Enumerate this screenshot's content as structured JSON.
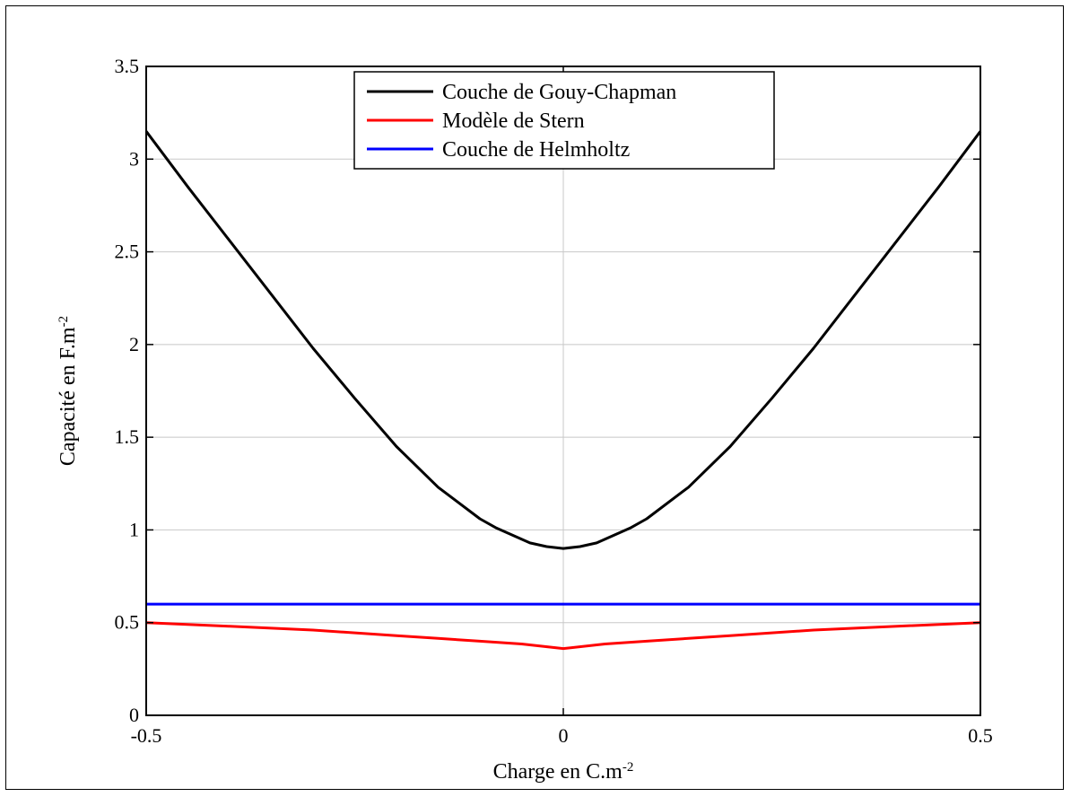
{
  "chart_data": {
    "type": "line",
    "title": "",
    "xlabel": "Charge en C.m",
    "xlabel_sup": "-2",
    "ylabel": "Capacité en F.m",
    "ylabel_sup": "-2",
    "xlim": [
      -0.5,
      0.5
    ],
    "ylim": [
      0,
      3.5
    ],
    "xticks": [
      -0.5,
      0,
      0.5
    ],
    "xtick_labels": [
      "-0.5",
      "0",
      "0.5"
    ],
    "yticks": [
      0,
      0.5,
      1,
      1.5,
      2,
      2.5,
      3,
      3.5
    ],
    "ytick_labels": [
      "0",
      "0.5",
      "1",
      "1.5",
      "2",
      "2.5",
      "3",
      "3.5"
    ],
    "grid": true,
    "legend_position": "top-center",
    "series": [
      {
        "name": "Couche de Gouy-Chapman",
        "color": "#000000",
        "x": [
          -0.5,
          -0.45,
          -0.4,
          -0.35,
          -0.3,
          -0.25,
          -0.2,
          -0.15,
          -0.1,
          -0.08,
          -0.06,
          -0.04,
          -0.02,
          0,
          0.02,
          0.04,
          0.06,
          0.08,
          0.1,
          0.15,
          0.2,
          0.25,
          0.3,
          0.35,
          0.4,
          0.45,
          0.5
        ],
        "y": [
          3.15,
          2.85,
          2.56,
          2.27,
          1.98,
          1.71,
          1.45,
          1.23,
          1.06,
          1.01,
          0.97,
          0.93,
          0.91,
          0.9,
          0.91,
          0.93,
          0.97,
          1.01,
          1.06,
          1.23,
          1.45,
          1.71,
          1.98,
          2.27,
          2.56,
          2.85,
          3.15
        ]
      },
      {
        "name": "Modèle de Stern",
        "color": "#ff0000",
        "x": [
          -0.5,
          -0.4,
          -0.3,
          -0.2,
          -0.15,
          -0.1,
          -0.05,
          0,
          0.05,
          0.1,
          0.15,
          0.2,
          0.3,
          0.4,
          0.5
        ],
        "y": [
          0.5,
          0.48,
          0.46,
          0.43,
          0.415,
          0.4,
          0.385,
          0.36,
          0.385,
          0.4,
          0.415,
          0.43,
          0.46,
          0.48,
          0.5
        ]
      },
      {
        "name": "Couche de Helmholtz",
        "color": "#0000ff",
        "x": [
          -0.5,
          0.5
        ],
        "y": [
          0.6,
          0.6
        ]
      }
    ]
  }
}
